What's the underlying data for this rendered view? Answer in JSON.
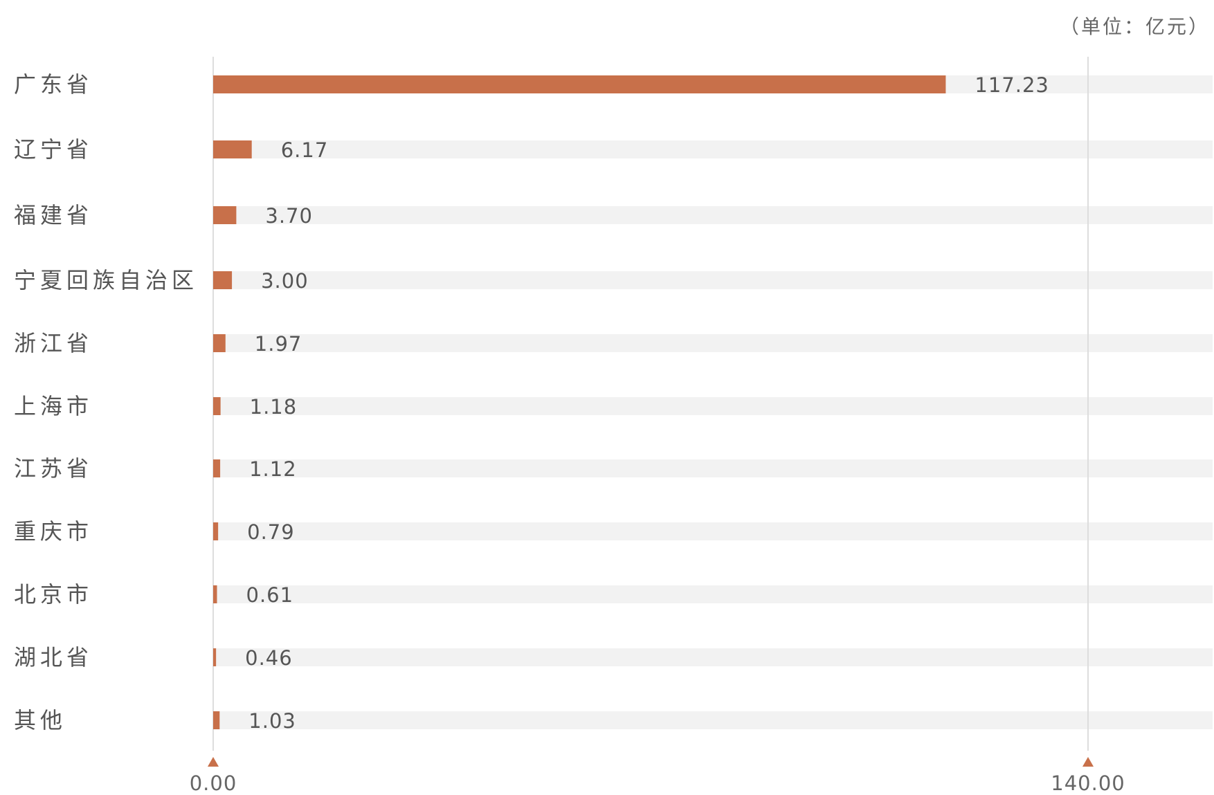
{
  "chart_data": {
    "type": "bar",
    "orientation": "horizontal",
    "unit_note": "（单位：亿元）",
    "categories": [
      "广东省",
      "辽宁省",
      "福建省",
      "宁夏回族自治区",
      "浙江省",
      "上海市",
      "江苏省",
      "重庆市",
      "北京市",
      "湖北省",
      "其他"
    ],
    "values": [
      117.23,
      6.17,
      3.7,
      3.0,
      1.97,
      1.18,
      1.12,
      0.79,
      0.61,
      0.46,
      1.03
    ],
    "value_labels": [
      "117.23",
      "6.17",
      "3.70",
      "3.00",
      "1.97",
      "1.18",
      "1.12",
      "0.79",
      "0.61",
      "0.46",
      "1.03"
    ],
    "xlim": [
      0,
      140
    ],
    "x_ticks": [
      0,
      140
    ],
    "x_tick_labels": [
      "0.00",
      "140.00"
    ],
    "grid": false,
    "legend": "none",
    "colors": {
      "bar": "#c8704a",
      "track": "#f2f2f2",
      "axis": "#dddddd",
      "tick_marker": "#c8704a",
      "text": "#555555"
    }
  }
}
